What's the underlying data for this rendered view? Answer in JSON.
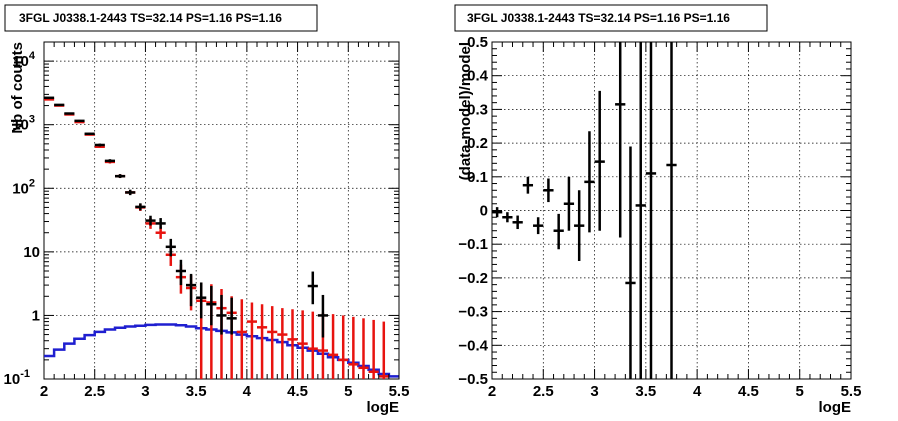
{
  "chart_data": [
    {
      "type": "histogram",
      "title": "3FGL J0338.1-2443 TS=32.14 PS=1.16 PS=1.16",
      "xlabel": "logE",
      "ylabel": "Nb of counts",
      "xlim": [
        2,
        5.5
      ],
      "ylim": [
        0.1,
        20000
      ],
      "yscale": "log",
      "grid": true,
      "x_ticks": [
        {
          "v": 2,
          "label": "2"
        },
        {
          "v": 2.5,
          "label": "2.5"
        },
        {
          "v": 3,
          "label": "3"
        },
        {
          "v": 3.5,
          "label": "3.5"
        },
        {
          "v": 4,
          "label": "4"
        },
        {
          "v": 4.5,
          "label": "4.5"
        },
        {
          "v": 5,
          "label": "5"
        },
        {
          "v": 5.5,
          "label": "5.5"
        }
      ],
      "y_ticks": [
        {
          "v": 0.1,
          "label": "10",
          "sup": "-1"
        },
        {
          "v": 1,
          "label": "1",
          "sup": ""
        },
        {
          "v": 10,
          "label": "10",
          "sup": ""
        },
        {
          "v": 100,
          "label": "10",
          "sup": "2"
        },
        {
          "v": 1000,
          "label": "10",
          "sup": "3"
        },
        {
          "v": 10000,
          "label": "10",
          "sup": "4"
        }
      ],
      "series": [
        {
          "color": "#000000",
          "kind": "errorbars",
          "points": [
            {
              "x": 2.05,
              "y": 2650,
              "lo": 2600,
              "hi": 2700
            },
            {
              "x": 2.15,
              "y": 2050,
              "lo": 2000,
              "hi": 2100
            },
            {
              "x": 2.25,
              "y": 1500,
              "lo": 1460,
              "hi": 1540
            },
            {
              "x": 2.35,
              "y": 1150,
              "lo": 1110,
              "hi": 1190
            },
            {
              "x": 2.45,
              "y": 720,
              "lo": 695,
              "hi": 745
            },
            {
              "x": 2.55,
              "y": 480,
              "lo": 455,
              "hi": 505
            },
            {
              "x": 2.65,
              "y": 270,
              "lo": 255,
              "hi": 287
            },
            {
              "x": 2.75,
              "y": 155,
              "lo": 145,
              "hi": 167
            },
            {
              "x": 2.85,
              "y": 86,
              "lo": 78,
              "hi": 95
            },
            {
              "x": 2.95,
              "y": 51,
              "lo": 45,
              "hi": 58
            },
            {
              "x": 3.05,
              "y": 31,
              "lo": 26,
              "hi": 37
            },
            {
              "x": 3.15,
              "y": 28,
              "lo": 23,
              "hi": 34
            },
            {
              "x": 3.25,
              "y": 12,
              "lo": 8.5,
              "hi": 16
            },
            {
              "x": 3.35,
              "y": 5,
              "lo": 3,
              "hi": 7.5
            },
            {
              "x": 3.45,
              "y": 3,
              "lo": 1.4,
              "hi": 4.5
            },
            {
              "x": 3.55,
              "y": 1.9,
              "lo": 0.9,
              "hi": 3.3
            },
            {
              "x": 3.65,
              "y": 1.5,
              "lo": 0.7,
              "hi": 2.9
            },
            {
              "x": 3.75,
              "y": 1.0,
              "lo": 0.5,
              "hi": 2.1
            },
            {
              "x": 3.85,
              "y": 0.9,
              "lo": 0.5,
              "hi": 1.9
            },
            {
              "x": 4.65,
              "y": 2.9,
              "lo": 1.5,
              "hi": 4.9
            },
            {
              "x": 4.75,
              "y": 1.0,
              "lo": 0.45,
              "hi": 2.1
            }
          ]
        },
        {
          "color": "#e8130f",
          "kind": "errorbars",
          "points": [
            {
              "x": 2.05,
              "y": 2500,
              "lo": 2440,
              "hi": 2560
            },
            {
              "x": 2.15,
              "y": 2000,
              "lo": 1950,
              "hi": 2050
            },
            {
              "x": 2.25,
              "y": 1450,
              "lo": 1410,
              "hi": 1490
            },
            {
              "x": 2.35,
              "y": 1100,
              "lo": 1065,
              "hi": 1135
            },
            {
              "x": 2.45,
              "y": 700,
              "lo": 675,
              "hi": 725
            },
            {
              "x": 2.55,
              "y": 450,
              "lo": 430,
              "hi": 470
            },
            {
              "x": 2.65,
              "y": 260,
              "lo": 245,
              "hi": 275
            },
            {
              "x": 2.75,
              "y": 155,
              "lo": 145,
              "hi": 166
            },
            {
              "x": 2.85,
              "y": 86,
              "lo": 79,
              "hi": 94
            },
            {
              "x": 2.95,
              "y": 50,
              "lo": 44,
              "hi": 57
            },
            {
              "x": 3.05,
              "y": 28,
              "lo": 23,
              "hi": 34
            },
            {
              "x": 3.15,
              "y": 20,
              "lo": 16,
              "hi": 25
            },
            {
              "x": 3.25,
              "y": 9,
              "lo": 6,
              "hi": 12.5
            },
            {
              "x": 3.35,
              "y": 4,
              "lo": 2.2,
              "hi": 6.3
            },
            {
              "x": 3.45,
              "y": 2.7,
              "lo": 1.2,
              "hi": 4.3
            },
            {
              "x": 3.55,
              "y": 1.7,
              "lo": 0.1,
              "hi": 3.3
            },
            {
              "x": 3.65,
              "y": 1.6,
              "lo": 0.1,
              "hi": 3.1
            },
            {
              "x": 3.75,
              "y": 1.3,
              "lo": 0.1,
              "hi": 2.6
            },
            {
              "x": 3.85,
              "y": 1.1,
              "lo": 0.1,
              "hi": 2.0
            },
            {
              "x": 3.95,
              "y": 0.55,
              "lo": 0.1,
              "hi": 1.8
            },
            {
              "x": 4.05,
              "y": 0.8,
              "lo": 0.1,
              "hi": 1.6
            },
            {
              "x": 4.15,
              "y": 0.65,
              "lo": 0.1,
              "hi": 1.5
            },
            {
              "x": 4.25,
              "y": 0.55,
              "lo": 0.1,
              "hi": 1.4
            },
            {
              "x": 4.35,
              "y": 0.5,
              "lo": 0.1,
              "hi": 1.3
            },
            {
              "x": 4.45,
              "y": 0.42,
              "lo": 0.1,
              "hi": 1.25
            },
            {
              "x": 4.55,
              "y": 0.36,
              "lo": 0.1,
              "hi": 1.2
            },
            {
              "x": 4.65,
              "y": 0.3,
              "lo": 0.1,
              "hi": 1.15
            },
            {
              "x": 4.75,
              "y": 0.28,
              "lo": 0.1,
              "hi": 1.1
            },
            {
              "x": 4.85,
              "y": 0.24,
              "lo": 0.1,
              "hi": 1.05
            },
            {
              "x": 4.95,
              "y": 0.2,
              "lo": 0.1,
              "hi": 1.0
            },
            {
              "x": 5.05,
              "y": 0.17,
              "lo": 0.1,
              "hi": 0.95
            },
            {
              "x": 5.15,
              "y": 0.15,
              "lo": 0.1,
              "hi": 0.9
            },
            {
              "x": 5.25,
              "y": 0.13,
              "lo": 0.1,
              "hi": 0.85
            },
            {
              "x": 5.35,
              "y": 0.11,
              "lo": 0.1,
              "hi": 0.8
            }
          ]
        },
        {
          "color": "#1f1fd0",
          "kind": "step",
          "bin_width": 0.1,
          "x_start": 2.0,
          "values": [
            0.23,
            0.29,
            0.36,
            0.43,
            0.49,
            0.55,
            0.6,
            0.64,
            0.67,
            0.69,
            0.71,
            0.72,
            0.72,
            0.7,
            0.67,
            0.63,
            0.6,
            0.57,
            0.54,
            0.5,
            0.47,
            0.44,
            0.41,
            0.38,
            0.34,
            0.31,
            0.28,
            0.25,
            0.22,
            0.2,
            0.18,
            0.16,
            0.14,
            0.12,
            0.11
          ]
        }
      ]
    },
    {
      "type": "scatter",
      "title": "3FGL J0338.1-2443 TS=32.14 PS=1.16 PS=1.16",
      "xlabel": "logE",
      "ylabel": "(data-model)/model",
      "xlim": [
        2,
        5.5
      ],
      "ylim": [
        -0.5,
        0.5
      ],
      "yscale": "linear",
      "grid": true,
      "x_ticks": [
        {
          "v": 2,
          "label": "2"
        },
        {
          "v": 2.5,
          "label": "2.5"
        },
        {
          "v": 3,
          "label": "3"
        },
        {
          "v": 3.5,
          "label": "3.5"
        },
        {
          "v": 4,
          "label": "4"
        },
        {
          "v": 4.5,
          "label": "4.5"
        },
        {
          "v": 5,
          "label": "5"
        },
        {
          "v": 5.5,
          "label": "5.5"
        }
      ],
      "y_ticks": [
        {
          "v": -0.5,
          "label": "−0.5"
        },
        {
          "v": -0.4,
          "label": "−0.4"
        },
        {
          "v": -0.3,
          "label": "−0.3"
        },
        {
          "v": -0.2,
          "label": "−0.2"
        },
        {
          "v": -0.1,
          "label": "−0.1"
        },
        {
          "v": 0,
          "label": "0"
        },
        {
          "v": 0.1,
          "label": "0.1"
        },
        {
          "v": 0.2,
          "label": "0.2"
        },
        {
          "v": 0.3,
          "label": "0.3"
        },
        {
          "v": 0.4,
          "label": "0.4"
        },
        {
          "v": 0.5,
          "label": "0.5"
        }
      ],
      "series": [
        {
          "color": "#000000",
          "kind": "errorbars",
          "points": [
            {
              "x": 2.05,
              "y": -0.005,
              "lo": -0.02,
              "hi": 0.01
            },
            {
              "x": 2.15,
              "y": -0.02,
              "lo": -0.035,
              "hi": -0.005
            },
            {
              "x": 2.25,
              "y": -0.035,
              "lo": -0.055,
              "hi": -0.015
            },
            {
              "x": 2.35,
              "y": 0.075,
              "lo": 0.05,
              "hi": 0.1
            },
            {
              "x": 2.45,
              "y": -0.045,
              "lo": -0.07,
              "hi": -0.02
            },
            {
              "x": 2.55,
              "y": 0.06,
              "lo": 0.025,
              "hi": 0.095
            },
            {
              "x": 2.65,
              "y": -0.06,
              "lo": -0.115,
              "hi": -0.01
            },
            {
              "x": 2.75,
              "y": 0.02,
              "lo": -0.06,
              "hi": 0.1
            },
            {
              "x": 2.85,
              "y": -0.045,
              "lo": -0.15,
              "hi": 0.06
            },
            {
              "x": 2.95,
              "y": 0.085,
              "lo": -0.065,
              "hi": 0.235
            },
            {
              "x": 3.05,
              "y": 0.145,
              "lo": -0.06,
              "hi": 0.355
            },
            {
              "x": 3.25,
              "y": 0.315,
              "lo": -0.08,
              "hi": 0.6
            },
            {
              "x": 3.35,
              "y": -0.215,
              "lo": -0.6,
              "hi": 0.19
            },
            {
              "x": 3.45,
              "y": 0.015,
              "lo": -0.6,
              "hi": 0.6
            },
            {
              "x": 3.55,
              "y": 0.11,
              "lo": -0.6,
              "hi": 0.6
            },
            {
              "x": 3.75,
              "y": 0.135,
              "lo": -0.6,
              "hi": 0.6
            }
          ]
        }
      ]
    }
  ]
}
